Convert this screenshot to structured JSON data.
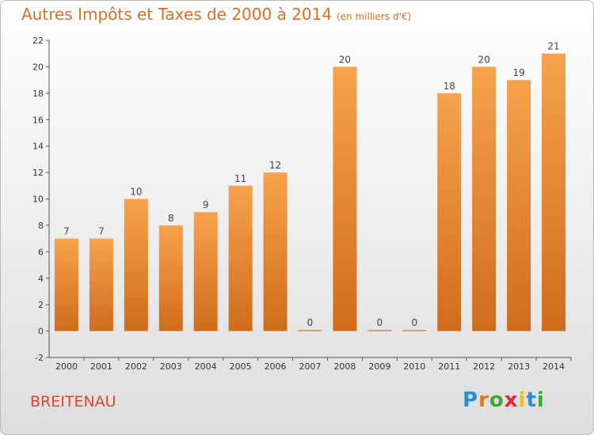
{
  "header": {
    "title": "Autres Impôts et Taxes de 2000 à 2014",
    "unit": "(en milliers d'€)"
  },
  "footer": {
    "place": "BREITENAU",
    "logo": {
      "text": "Proxiti",
      "letter_colors": [
        "#2a8fd8",
        "#e07b22",
        "#3aaa35",
        "#e0282e",
        "#e0c022",
        "#2a8fd8",
        "#3aaa35"
      ]
    }
  },
  "colors": {
    "bar_light": "#f7a24c",
    "bar_dark": "#cf6d1d",
    "title": "#d8702a",
    "place": "#d8492a"
  },
  "chart_data": {
    "type": "bar",
    "categories": [
      "2000",
      "2001",
      "2002",
      "2003",
      "2004",
      "2005",
      "2006",
      "2007",
      "2008",
      "2009",
      "2010",
      "2011",
      "2012",
      "2013",
      "2014"
    ],
    "values": [
      7,
      7,
      10,
      8,
      9,
      11,
      12,
      0,
      20,
      0,
      0,
      18,
      20,
      19,
      21
    ],
    "value_labels": [
      "7",
      "7",
      "10",
      "8",
      "9",
      "11",
      "12",
      "0",
      "20",
      "0",
      "0",
      "18",
      "20",
      "19",
      "21"
    ],
    "ylim": [
      -2,
      22
    ],
    "yticks": [
      -2,
      0,
      2,
      4,
      6,
      8,
      10,
      12,
      14,
      16,
      18,
      20,
      22
    ],
    "grid": false
  }
}
